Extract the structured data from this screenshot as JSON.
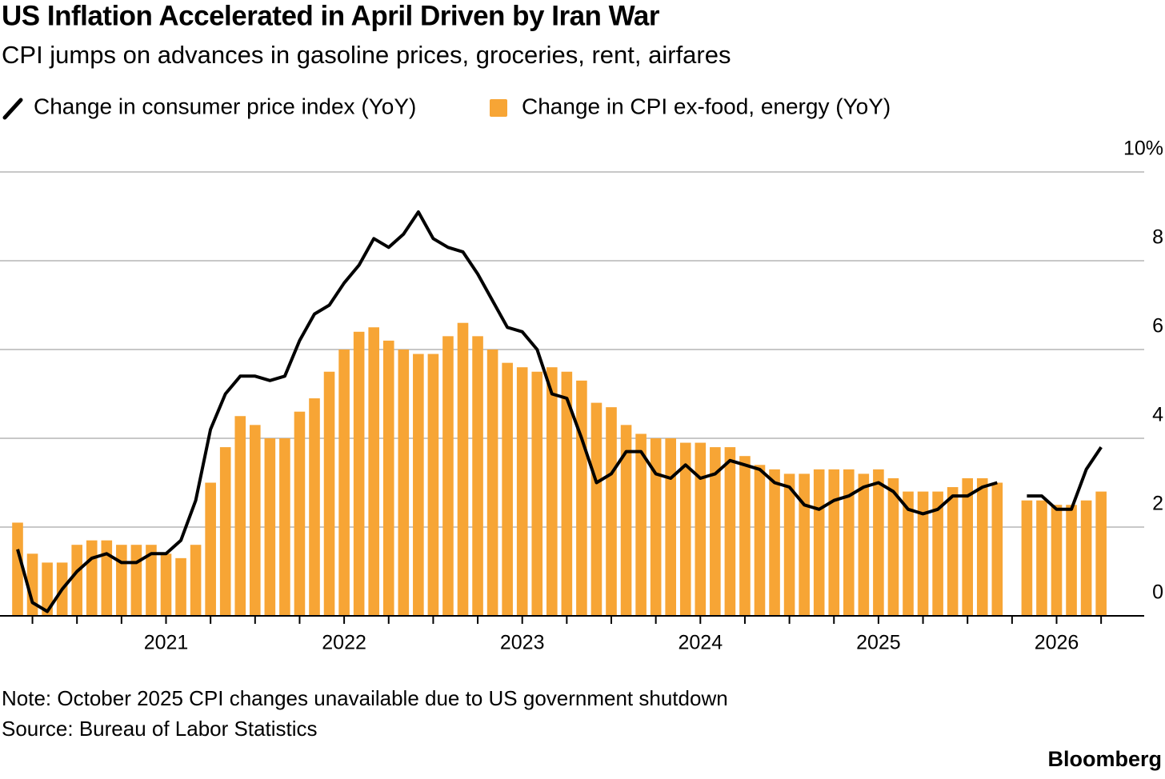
{
  "chart_data": {
    "type": "combo",
    "title": "US Inflation Accelerated in April Driven by Iran War",
    "subtitle": "CPI jumps on advances in gasoline prices, groceries, rent, airfares",
    "note": "Note: October 2025 CPI changes unavailable due to US government shutdown",
    "source": "Source: Bureau of Labor Statistics",
    "brand": "Bloomberg",
    "categories": [
      null,
      null,
      null,
      null,
      null,
      null,
      null,
      null,
      null,
      null,
      "2021",
      null,
      null,
      null,
      null,
      null,
      null,
      null,
      null,
      null,
      null,
      null,
      "2022",
      null,
      null,
      null,
      null,
      null,
      null,
      null,
      null,
      null,
      null,
      null,
      "2023",
      null,
      null,
      null,
      null,
      null,
      null,
      null,
      null,
      null,
      null,
      null,
      "2024",
      null,
      null,
      null,
      null,
      null,
      null,
      null,
      null,
      null,
      null,
      null,
      "2025",
      null,
      null,
      null,
      null,
      null,
      null,
      null,
      null,
      null,
      null,
      null,
      "2026",
      null,
      null,
      null
    ],
    "series": [
      {
        "name": "Change in consumer price index (YoY)",
        "type": "line",
        "color": "#000000",
        "values": [
          1.5,
          0.3,
          0.1,
          0.6,
          1.0,
          1.3,
          1.4,
          1.2,
          1.2,
          1.4,
          1.4,
          1.7,
          2.6,
          4.2,
          5.0,
          5.4,
          5.4,
          5.3,
          5.4,
          6.2,
          6.8,
          7.0,
          7.5,
          7.9,
          8.5,
          8.3,
          8.6,
          9.1,
          8.5,
          8.3,
          8.2,
          7.7,
          7.1,
          6.5,
          6.4,
          6.0,
          5.0,
          4.9,
          4.0,
          3.0,
          3.2,
          3.7,
          3.7,
          3.2,
          3.1,
          3.4,
          3.1,
          3.2,
          3.5,
          3.4,
          3.3,
          3.0,
          2.9,
          2.5,
          2.4,
          2.6,
          2.7,
          2.9,
          3.0,
          2.8,
          2.4,
          2.3,
          2.4,
          2.7,
          2.7,
          2.9,
          3.0,
          null,
          2.7,
          2.7,
          2.4,
          2.4,
          3.3,
          3.8
        ]
      },
      {
        "name": "Change in CPI ex-food, energy (YoY)",
        "type": "bar",
        "color": "#f7a535",
        "values": [
          2.1,
          1.4,
          1.2,
          1.2,
          1.6,
          1.7,
          1.7,
          1.6,
          1.6,
          1.6,
          1.4,
          1.3,
          1.6,
          3.0,
          3.8,
          4.5,
          4.3,
          4.0,
          4.0,
          4.6,
          4.9,
          5.5,
          6.0,
          6.4,
          6.5,
          6.2,
          6.0,
          5.9,
          5.9,
          6.3,
          6.6,
          6.3,
          6.0,
          5.7,
          5.6,
          5.5,
          5.6,
          5.5,
          5.3,
          4.8,
          4.7,
          4.3,
          4.1,
          4.0,
          4.0,
          3.9,
          3.9,
          3.8,
          3.8,
          3.6,
          3.4,
          3.3,
          3.2,
          3.2,
          3.3,
          3.3,
          3.3,
          3.2,
          3.3,
          3.1,
          2.8,
          2.8,
          2.8,
          2.9,
          3.1,
          3.1,
          3.0,
          null,
          2.6,
          2.6,
          2.5,
          2.5,
          2.6,
          2.8
        ]
      }
    ],
    "ylim": [
      0,
      10
    ],
    "yticks": [
      0,
      2,
      4,
      6,
      8,
      {
        "value": 10,
        "label": "10%"
      }
    ],
    "grid": true
  }
}
